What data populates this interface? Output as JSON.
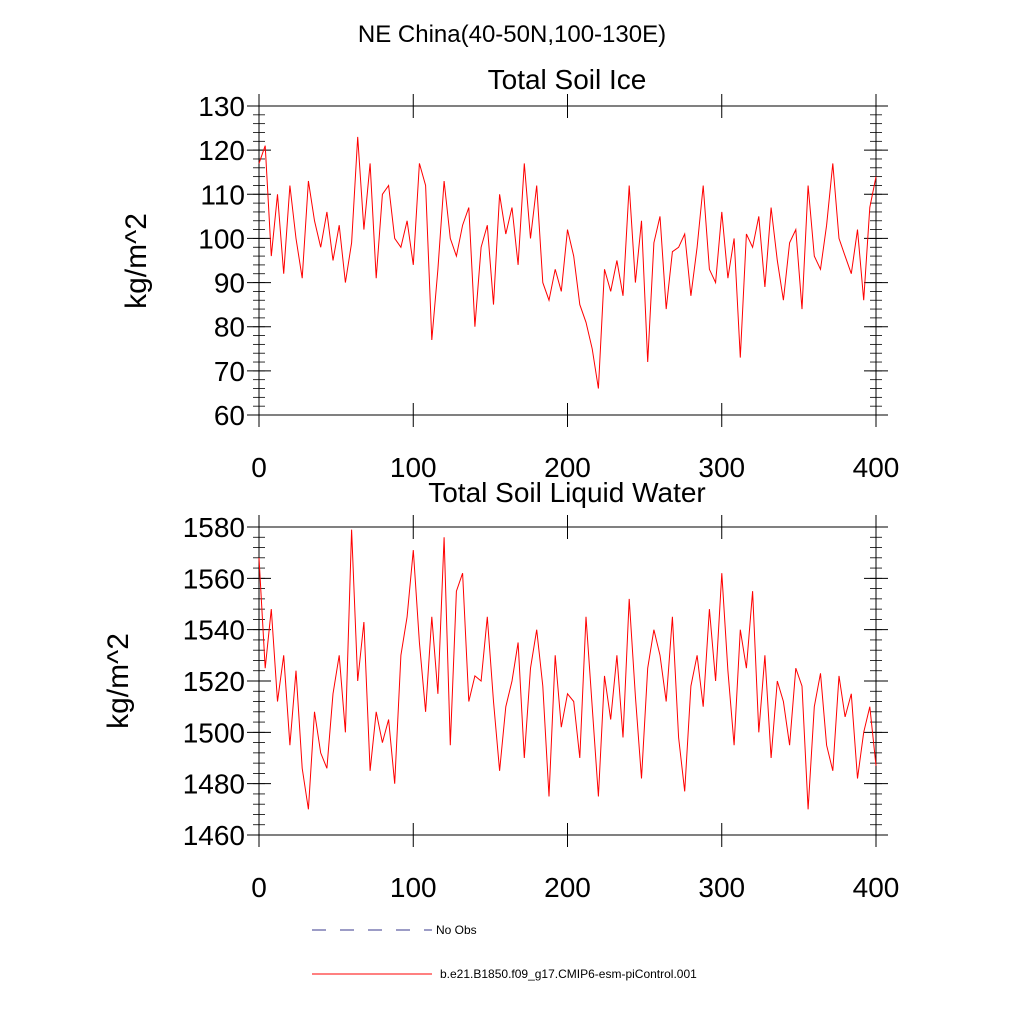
{
  "figure": {
    "suptitle": "NE China(40-50N,100-130E)"
  },
  "legend": {
    "entries": [
      {
        "label": "No Obs",
        "color": "#3a3a8c",
        "style": "dashed"
      },
      {
        "label": "b.e21.B1850.f09_g17.CMIP6-esm-piControl.001",
        "color": "#ff0000",
        "style": "solid"
      }
    ]
  },
  "chart_data": [
    {
      "type": "line",
      "title": "Total Soil Ice",
      "xlabel": "",
      "ylabel": "kg/m^2",
      "xlim": [
        0,
        400
      ],
      "ylim": [
        60,
        130
      ],
      "xticks": [
        0,
        100,
        200,
        300,
        400
      ],
      "yticks": [
        60,
        70,
        80,
        90,
        100,
        110,
        120,
        130
      ],
      "grid": false,
      "series": [
        {
          "color": "#ff0000",
          "x": [
            0,
            4,
            8,
            12,
            16,
            20,
            24,
            28,
            32,
            36,
            40,
            44,
            48,
            52,
            56,
            60,
            64,
            68,
            72,
            76,
            80,
            84,
            88,
            92,
            96,
            100,
            104,
            108,
            112,
            116,
            120,
            124,
            128,
            132,
            136,
            140,
            144,
            148,
            152,
            156,
            160,
            164,
            168,
            172,
            176,
            180,
            184,
            188,
            192,
            196,
            200,
            204,
            208,
            212,
            216,
            220,
            224,
            228,
            232,
            236,
            240,
            244,
            248,
            252,
            256,
            260,
            264,
            268,
            272,
            276,
            280,
            284,
            288,
            292,
            296,
            300,
            304,
            308,
            312,
            316,
            320,
            324,
            328,
            332,
            336,
            340,
            344,
            348,
            352,
            356,
            360,
            364,
            368,
            372,
            376,
            380,
            384,
            388,
            392,
            396,
            400
          ],
          "values": [
            117,
            121,
            96,
            110,
            92,
            112,
            100,
            91,
            113,
            104,
            98,
            106,
            95,
            103,
            90,
            99,
            123,
            102,
            117,
            91,
            110,
            112,
            100,
            98,
            104,
            94,
            117,
            112,
            77,
            93,
            113,
            100,
            96,
            103,
            107,
            80,
            98,
            103,
            85,
            110,
            101,
            107,
            94,
            117,
            100,
            112,
            90,
            86,
            93,
            88,
            102,
            96,
            85,
            81,
            75,
            66,
            93,
            88,
            95,
            87,
            112,
            90,
            104,
            72,
            99,
            105,
            84,
            97,
            98,
            101,
            87,
            98,
            112,
            93,
            90,
            106,
            91,
            100,
            73,
            101,
            98,
            105,
            89,
            107,
            95,
            86,
            99,
            102,
            84,
            112,
            96,
            93,
            103,
            117,
            100,
            96,
            92,
            102,
            86,
            107,
            114
          ]
        }
      ]
    },
    {
      "type": "line",
      "title": "Total Soil Liquid Water",
      "xlabel": "",
      "ylabel": "kg/m^2",
      "xlim": [
        0,
        400
      ],
      "ylim": [
        1460,
        1580
      ],
      "xticks": [
        0,
        100,
        200,
        300,
        400
      ],
      "yticks": [
        1460,
        1480,
        1500,
        1520,
        1540,
        1560,
        1580
      ],
      "grid": false,
      "series": [
        {
          "color": "#ff0000",
          "x": [
            0,
            4,
            8,
            12,
            16,
            20,
            24,
            28,
            32,
            36,
            40,
            44,
            48,
            52,
            56,
            60,
            64,
            68,
            72,
            76,
            80,
            84,
            88,
            92,
            96,
            100,
            104,
            108,
            112,
            116,
            120,
            124,
            128,
            132,
            136,
            140,
            144,
            148,
            152,
            156,
            160,
            164,
            168,
            172,
            176,
            180,
            184,
            188,
            192,
            196,
            200,
            204,
            208,
            212,
            216,
            220,
            224,
            228,
            232,
            236,
            240,
            244,
            248,
            252,
            256,
            260,
            264,
            268,
            272,
            276,
            280,
            284,
            288,
            292,
            296,
            300,
            304,
            308,
            312,
            316,
            320,
            324,
            328,
            332,
            336,
            340,
            344,
            348,
            352,
            356,
            360,
            364,
            368,
            372,
            376,
            380,
            384,
            388,
            392,
            396,
            400
          ],
          "values": [
            1568,
            1525,
            1548,
            1512,
            1530,
            1495,
            1524,
            1486,
            1470,
            1508,
            1492,
            1486,
            1515,
            1530,
            1500,
            1579,
            1520,
            1543,
            1485,
            1508,
            1496,
            1505,
            1480,
            1530,
            1545,
            1571,
            1535,
            1508,
            1545,
            1515,
            1576,
            1495,
            1555,
            1562,
            1512,
            1522,
            1520,
            1545,
            1512,
            1485,
            1510,
            1520,
            1535,
            1490,
            1525,
            1540,
            1518,
            1475,
            1530,
            1502,
            1515,
            1512,
            1490,
            1545,
            1510,
            1475,
            1522,
            1505,
            1530,
            1498,
            1552,
            1514,
            1482,
            1525,
            1540,
            1530,
            1512,
            1545,
            1498,
            1477,
            1518,
            1530,
            1510,
            1548,
            1520,
            1562,
            1524,
            1495,
            1540,
            1525,
            1555,
            1500,
            1530,
            1490,
            1520,
            1512,
            1495,
            1525,
            1518,
            1470,
            1510,
            1523,
            1495,
            1485,
            1522,
            1506,
            1515,
            1482,
            1500,
            1510,
            1487
          ]
        }
      ]
    }
  ]
}
